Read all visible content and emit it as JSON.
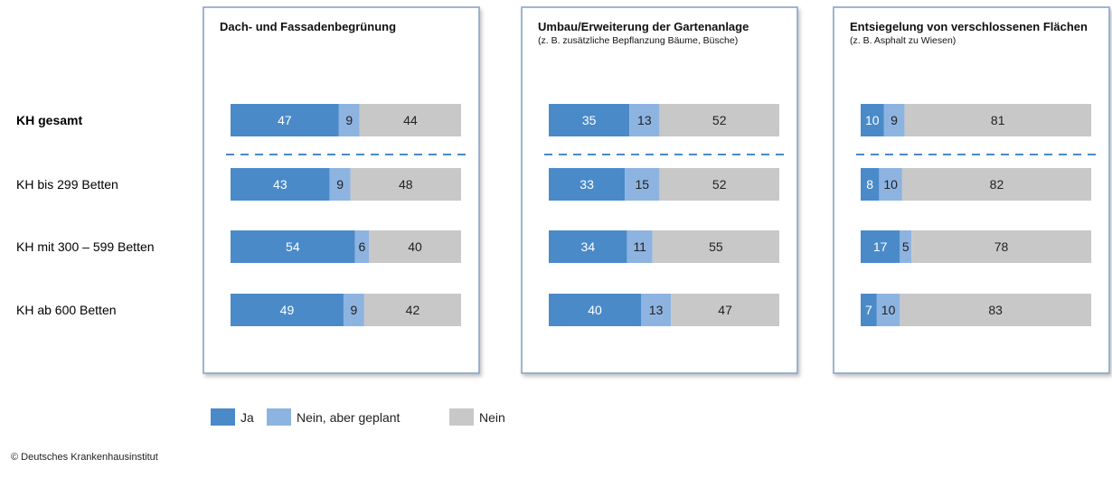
{
  "chart_data": {
    "type": "bar",
    "orientation": "horizontal",
    "stacked": true,
    "xlim": [
      0,
      100
    ],
    "categories": [
      "KH gesamt",
      "KH bis 299 Betten",
      "KH mit 300 – 599 Betten",
      "KH ab 600 Betten"
    ],
    "legend": [
      {
        "name": "Ja",
        "color": "#4a8ac9"
      },
      {
        "name": "Nein, aber geplant",
        "color": "#8db3e0"
      },
      {
        "name": "Nein",
        "color": "#c8c8c8"
      }
    ],
    "panels": [
      {
        "title": "Dach- und Fassadenbegrünung",
        "series": [
          {
            "values": [
              47,
              43,
              54,
              49
            ]
          },
          {
            "values": [
              9,
              9,
              6,
              9
            ]
          },
          {
            "values": [
              44,
              48,
              40,
              42
            ]
          }
        ]
      },
      {
        "title": "Umbau/Erweiterung der Gartenanlage",
        "subtitle": "(z. B. zusätzliche Bepflanzung Bäume, Büsche)",
        "series": [
          {
            "values": [
              35,
              33,
              34,
              40
            ]
          },
          {
            "values": [
              13,
              15,
              11,
              13
            ]
          },
          {
            "values": [
              52,
              52,
              55,
              47
            ]
          }
        ]
      },
      {
        "title": "Entsiegelung von verschlossenen Flächen",
        "subtitle": "(z. B. Asphalt zu Wiesen)",
        "series": [
          {
            "values": [
              10,
              8,
              17,
              7
            ]
          },
          {
            "values": [
              9,
              10,
              5,
              10
            ]
          },
          {
            "values": [
              81,
              82,
              78,
              83
            ]
          }
        ]
      }
    ],
    "source": "© Deutsches Krankenhausinstitut"
  }
}
